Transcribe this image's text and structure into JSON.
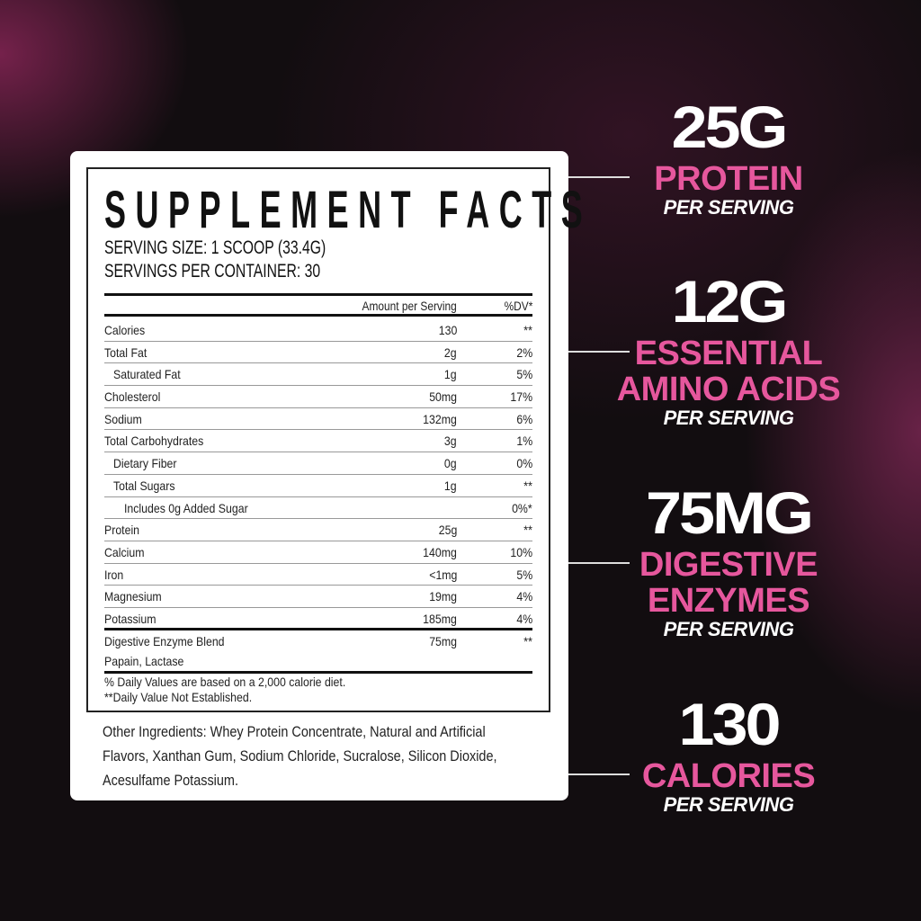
{
  "label": {
    "title": "SUPPLEMENT FACTS",
    "serving_size": "SERVING SIZE: 1 SCOOP (33.4G)",
    "servings_per_container": "SERVINGS PER CONTAINER: 30",
    "col_amount": "Amount per Serving",
    "col_dv": "%DV*",
    "rows": [
      {
        "name": "Calories",
        "amount": "130",
        "dv": "**"
      },
      {
        "name": "Total Fat",
        "amount": "2g",
        "dv": "2%"
      },
      {
        "name": "Saturated Fat",
        "amount": "1g",
        "dv": "5%"
      },
      {
        "name": "Cholesterol",
        "amount": "50mg",
        "dv": "17%"
      },
      {
        "name": "Sodium",
        "amount": "132mg",
        "dv": "6%"
      },
      {
        "name": "Total Carbohydrates",
        "amount": "3g",
        "dv": "1%"
      },
      {
        "name": "Dietary Fiber",
        "amount": "0g",
        "dv": "0%"
      },
      {
        "name": "Total Sugars",
        "amount": "1g",
        "dv": "**"
      },
      {
        "name": "Includes 0g Added Sugar",
        "amount": "",
        "dv": "0%*"
      },
      {
        "name": "Protein",
        "amount": "25g",
        "dv": "**"
      },
      {
        "name": "Calcium",
        "amount": "140mg",
        "dv": "10%"
      },
      {
        "name": "Iron",
        "amount": "<1mg",
        "dv": "5%"
      },
      {
        "name": "Magnesium",
        "amount": "19mg",
        "dv": "4%"
      },
      {
        "name": "Potassium",
        "amount": "185mg",
        "dv": "4%"
      }
    ],
    "blend": {
      "name": "Digestive Enzyme Blend",
      "sub": "Papain, Lactase",
      "amount": "75mg",
      "dv": "**"
    },
    "footnote1": "% Daily Values are based on a 2,000 calorie diet.",
    "footnote2": "**Daily Value Not Established.",
    "other_ingredients": "Other Ingredients: Whey Protein Concentrate, Natural and Artificial Flavors, Xanthan Gum, Sodium Chloride, Sucralose, Silicon Dioxide, Acesulfame Potassium."
  },
  "callouts": [
    {
      "value": "25G",
      "lines": [
        "PROTEIN"
      ],
      "sub": "PER SERVING"
    },
    {
      "value": "12G",
      "lines": [
        "ESSENTIAL",
        "AMINO ACIDS"
      ],
      "sub": "PER SERVING"
    },
    {
      "value": "75MG",
      "lines": [
        "DIGESTIVE",
        "ENZYMES"
      ],
      "sub": "PER SERVING"
    },
    {
      "value": "130",
      "lines": [
        "CALORIES"
      ],
      "sub": "PER SERVING"
    }
  ],
  "colors": {
    "accent": "#e6579d",
    "background": "#120d10",
    "card": "#ffffff"
  }
}
